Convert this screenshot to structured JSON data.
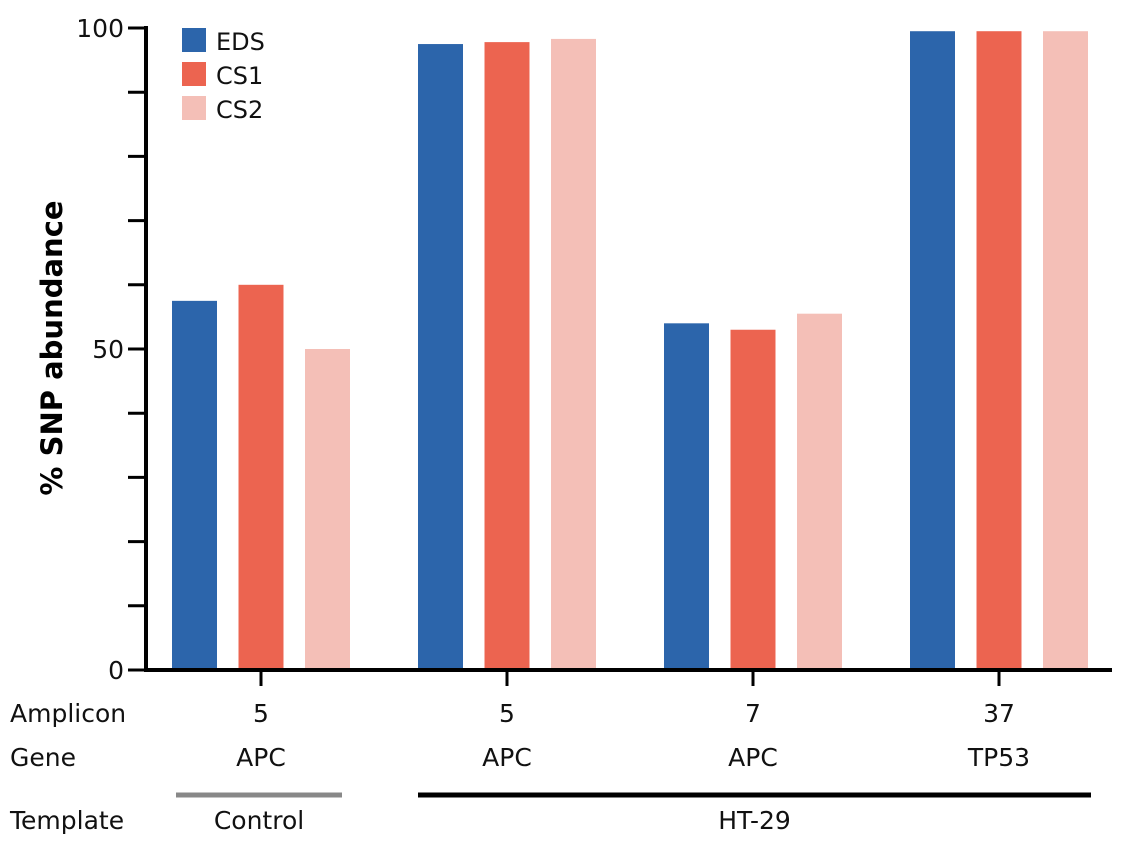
{
  "chart_data": {
    "type": "bar",
    "ylabel": "% SNP abundance",
    "ylim": [
      0,
      100
    ],
    "yticks_labeled": [
      "0",
      "50",
      "100"
    ],
    "yticks_minor_step": 10,
    "grid": false,
    "legend_position": "top-left",
    "series": [
      {
        "name": "EDS",
        "color": "#2c65ab",
        "values": [
          57.5,
          97.5,
          54,
          99.5
        ]
      },
      {
        "name": "CS1",
        "color": "#ec6450",
        "values": [
          60,
          97.8,
          53,
          99.5
        ]
      },
      {
        "name": "CS2",
        "color": "#f4bfb7",
        "values": [
          50,
          98.3,
          55.5,
          99.5
        ]
      }
    ],
    "groups": [
      {
        "amplicon": "5",
        "gene": "APC"
      },
      {
        "amplicon": "5",
        "gene": "APC"
      },
      {
        "amplicon": "7",
        "gene": "APC"
      },
      {
        "amplicon": "37",
        "gene": "TP53"
      }
    ],
    "row_labels": {
      "amplicon": "Amplicon",
      "gene": "Gene",
      "template": "Template"
    },
    "templates": [
      {
        "label": "Control",
        "from_group": 0,
        "to_group": 0,
        "color": "#888888"
      },
      {
        "label": "HT-29",
        "from_group": 1,
        "to_group": 3,
        "color": "#000000"
      }
    ]
  }
}
